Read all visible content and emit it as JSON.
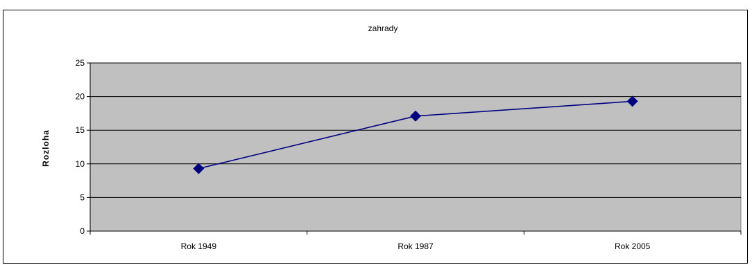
{
  "chart_data": {
    "type": "line",
    "title": "zahrady",
    "ylabel": "Rozloha",
    "xlabel": "",
    "categories": [
      "Rok 1949",
      "Rok 1987",
      "Rok 2005"
    ],
    "series": [
      {
        "values": [
          9.3,
          17.1,
          19.3
        ]
      }
    ],
    "ylim": [
      0,
      25
    ],
    "yticks": [
      0,
      5,
      10,
      15,
      20,
      25
    ],
    "grid": true,
    "legend": "none",
    "colors": {
      "plot_background": "#c0c0c0",
      "line": "#000080",
      "marker": "#000080",
      "gridline": "#000000"
    }
  }
}
